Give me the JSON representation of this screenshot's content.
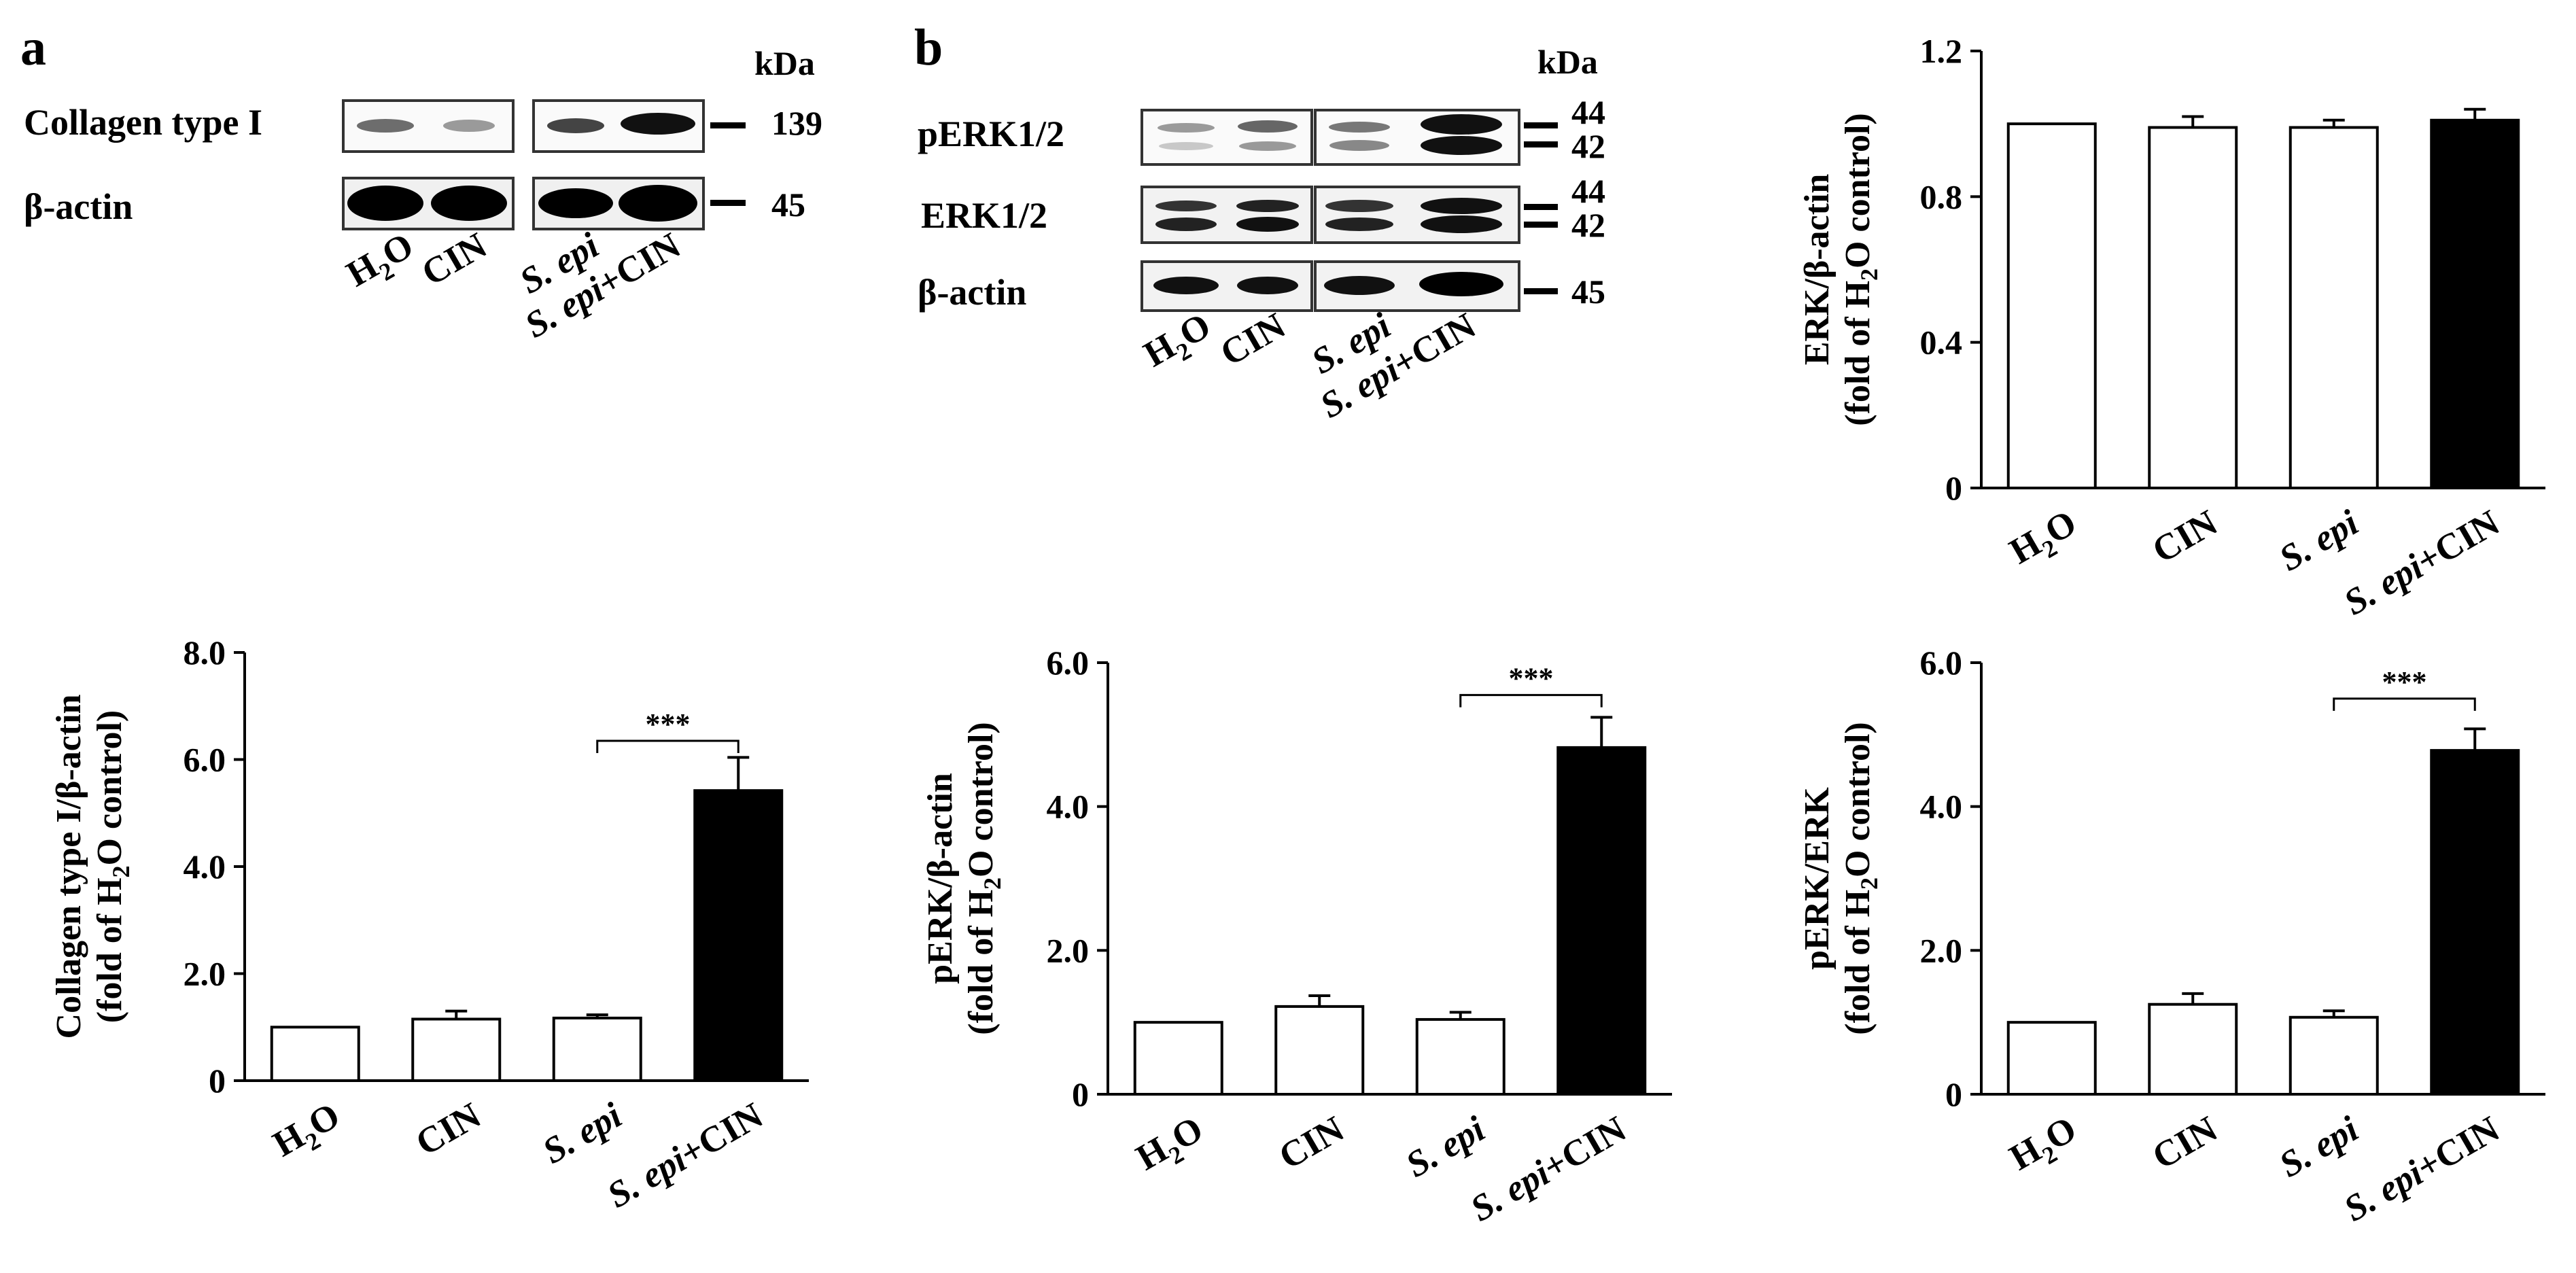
{
  "panels": {
    "a": "a",
    "b": "b"
  },
  "blot_a": {
    "unit": "kDa",
    "rows": [
      {
        "label": "Collagen type I",
        "kda": "139"
      },
      {
        "label": "β-actin",
        "kda": "45"
      }
    ],
    "lanes": [
      {
        "plain": "H",
        "sub": "2",
        "tail": "O",
        "italic": ""
      },
      {
        "plain": "CIN",
        "sub": "",
        "tail": "",
        "italic": ""
      },
      {
        "plain": "",
        "sub": "",
        "tail": "",
        "italic": "S. epi"
      },
      {
        "plain": "+CIN",
        "sub": "",
        "tail": "",
        "italic": "S. epi"
      }
    ]
  },
  "blot_b": {
    "unit": "kDa",
    "rows": [
      {
        "label": "pERK1/2",
        "kda": [
          "44",
          "42"
        ]
      },
      {
        "label": "ERK1/2",
        "kda": [
          "44",
          "42"
        ]
      },
      {
        "label": "β-actin",
        "kda": [
          "45"
        ]
      }
    ],
    "lanes": [
      {
        "plain": "H",
        "sub": "2",
        "tail": "O",
        "italic": ""
      },
      {
        "plain": "CIN",
        "sub": "",
        "tail": "",
        "italic": ""
      },
      {
        "plain": "",
        "sub": "",
        "tail": "",
        "italic": "S. epi"
      },
      {
        "plain": "+CIN",
        "sub": "",
        "tail": "",
        "italic": "S. epi"
      }
    ]
  },
  "chart_data": [
    {
      "id": "erk-actin",
      "type": "bar",
      "categories": [
        "H2O",
        "CIN",
        "S. epi",
        "S. epi+CIN"
      ],
      "values": [
        1.0,
        0.99,
        0.99,
        1.01
      ],
      "errors": [
        0.0,
        0.03,
        0.02,
        0.03
      ],
      "bar_colors": [
        "#ffffff",
        "#ffffff",
        "#ffffff",
        "#000000"
      ],
      "ylabel_line1": "ERK/β-actin",
      "ylabel_line2": "(fold of H2O control)",
      "ylim": [
        0,
        1.2
      ],
      "yticks": [
        0,
        0.4,
        0.8,
        1.2
      ],
      "ytick_labels": [
        "0",
        "0.4",
        "0.8",
        "1.2"
      ],
      "significance": []
    },
    {
      "id": "collagen-actin",
      "type": "bar",
      "categories": [
        "H2O",
        "CIN",
        "S. epi",
        "S. epi+CIN"
      ],
      "values": [
        1.0,
        1.15,
        1.17,
        5.42
      ],
      "errors": [
        0.0,
        0.15,
        0.06,
        0.62
      ],
      "bar_colors": [
        "#ffffff",
        "#ffffff",
        "#ffffff",
        "#000000"
      ],
      "ylabel_line1": "Collagen type I/β-actin",
      "ylabel_line2": "(fold of H2O control)",
      "ylim": [
        0,
        8.0
      ],
      "yticks": [
        0,
        2.0,
        4.0,
        6.0,
        8.0
      ],
      "ytick_labels": [
        "0",
        "2.0",
        "4.0",
        "6.0",
        "8.0"
      ],
      "significance": [
        {
          "from": 2,
          "to": 3,
          "label": "***",
          "y": 6.35
        }
      ]
    },
    {
      "id": "perk-actin",
      "type": "bar",
      "categories": [
        "H2O",
        "CIN",
        "S. epi",
        "S. epi+CIN"
      ],
      "values": [
        1.0,
        1.22,
        1.04,
        4.82
      ],
      "errors": [
        0.0,
        0.15,
        0.1,
        0.42
      ],
      "bar_colors": [
        "#ffffff",
        "#ffffff",
        "#ffffff",
        "#000000"
      ],
      "ylabel_line1": "pERK/β-actin",
      "ylabel_line2": "(fold of H2O control)",
      "ylim": [
        0,
        6.0
      ],
      "yticks": [
        0,
        2.0,
        4.0,
        6.0
      ],
      "ytick_labels": [
        "0",
        "2.0",
        "4.0",
        "6.0"
      ],
      "significance": [
        {
          "from": 2,
          "to": 3,
          "label": "***",
          "y": 5.55
        }
      ]
    },
    {
      "id": "perk-erk",
      "type": "bar",
      "categories": [
        "H2O",
        "CIN",
        "S. epi",
        "S. epi+CIN"
      ],
      "values": [
        1.0,
        1.25,
        1.07,
        4.78
      ],
      "errors": [
        0.0,
        0.15,
        0.09,
        0.3
      ],
      "bar_colors": [
        "#ffffff",
        "#ffffff",
        "#ffffff",
        "#000000"
      ],
      "ylabel_line1": "pERK/ERK",
      "ylabel_line2": "(fold of H2O control)",
      "ylim": [
        0,
        6.0
      ],
      "yticks": [
        0,
        2.0,
        4.0,
        6.0
      ],
      "ytick_labels": [
        "0",
        "2.0",
        "4.0",
        "6.0"
      ],
      "significance": [
        {
          "from": 2,
          "to": 3,
          "label": "***",
          "y": 5.5
        }
      ]
    }
  ]
}
